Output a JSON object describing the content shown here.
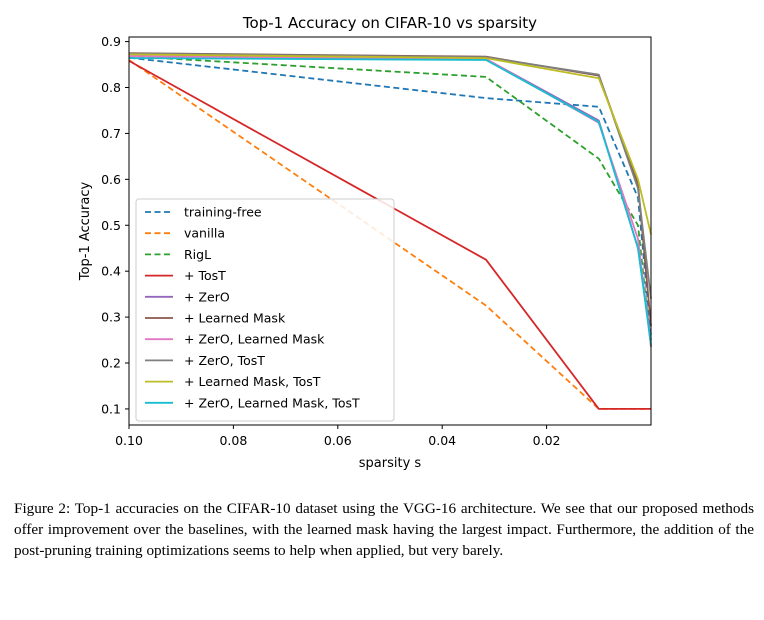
{
  "chart_data": {
    "type": "line",
    "title": "Top-1 Accuracy on CIFAR-10 vs sparsity",
    "xlabel": "sparsity s",
    "ylabel": "Top-1 Accuracy",
    "xlim": [
      0.1,
      0.0
    ],
    "ylim": [
      0.065,
      0.91
    ],
    "x_reversed": true,
    "xticks": [
      0.1,
      0.08,
      0.06,
      0.04,
      0.02
    ],
    "xtick_labels": [
      "0.10",
      "0.08",
      "0.06",
      "0.04",
      "0.02"
    ],
    "yticks": [
      0.1,
      0.2,
      0.3,
      0.4,
      0.5,
      0.6,
      0.7,
      0.8,
      0.9
    ],
    "ytick_labels": [
      "0.1",
      "0.2",
      "0.3",
      "0.4",
      "0.5",
      "0.6",
      "0.7",
      "0.8",
      "0.9"
    ],
    "grid": false,
    "legend_position": "lower-left",
    "series": [
      {
        "name": "training-free",
        "color": "#1f77b4",
        "dash": true,
        "x": [
          0.1,
          0.0316,
          0.01,
          0.0025,
          0.0
        ],
        "y": [
          0.865,
          0.777,
          0.758,
          0.56,
          0.26
        ]
      },
      {
        "name": "vanilla",
        "color": "#ff7f0e",
        "dash": true,
        "x": [
          0.1,
          0.0316,
          0.01,
          0.0025,
          0.0
        ],
        "y": [
          0.86,
          0.325,
          0.1,
          0.1,
          0.1
        ]
      },
      {
        "name": "RigL",
        "color": "#2ca02c",
        "dash": true,
        "x": [
          0.1,
          0.0316,
          0.01,
          0.0025,
          0.0
        ],
        "y": [
          0.868,
          0.823,
          0.645,
          0.5,
          0.235
        ]
      },
      {
        "name": "+ TosT",
        "color": "#d62728",
        "dash": false,
        "x": [
          0.1,
          0.0316,
          0.01,
          0.0025,
          0.0
        ],
        "y": [
          0.858,
          0.425,
          0.1,
          0.1,
          0.1
        ]
      },
      {
        "name": "+ ZerO",
        "color": "#9467bd",
        "dash": false,
        "x": [
          0.1,
          0.0316,
          0.01,
          0.0025,
          0.0
        ],
        "y": [
          0.872,
          0.862,
          0.728,
          0.45,
          0.25
        ]
      },
      {
        "name": "+ Learned Mask",
        "color": "#8c564b",
        "dash": false,
        "x": [
          0.1,
          0.0316,
          0.01,
          0.0025,
          0.0
        ],
        "y": [
          0.875,
          0.867,
          0.826,
          0.59,
          0.28
        ]
      },
      {
        "name": "+ ZerO, Learned Mask",
        "color": "#e377c2",
        "dash": false,
        "x": [
          0.1,
          0.0316,
          0.01,
          0.0025,
          0.0
        ],
        "y": [
          0.868,
          0.862,
          0.723,
          0.47,
          0.235
        ]
      },
      {
        "name": "+ ZerO, TosT",
        "color": "#7f7f7f",
        "dash": false,
        "x": [
          0.1,
          0.0316,
          0.01,
          0.0025,
          0.0
        ],
        "y": [
          0.874,
          0.866,
          0.828,
          0.58,
          0.34
        ]
      },
      {
        "name": "+ Learned Mask, TosT",
        "color": "#bcbd22",
        "dash": false,
        "x": [
          0.1,
          0.0316,
          0.01,
          0.0025,
          0.0
        ],
        "y": [
          0.872,
          0.864,
          0.82,
          0.6,
          0.48
        ]
      },
      {
        "name": "+ ZerO, Learned Mask, TosT",
        "color": "#17becf",
        "dash": false,
        "x": [
          0.1,
          0.0316,
          0.01,
          0.0025,
          0.0
        ],
        "y": [
          0.864,
          0.86,
          0.725,
          0.45,
          0.24
        ]
      }
    ]
  },
  "caption": "Figure 2: Top-1 accuracies on the CIFAR-10 dataset using the VGG-16 architecture. We see that our proposed methods offer improvement over the baselines, with the learned mask having the largest impact. Furthermore, the addition of the post-pruning training optimizations seems to help when applied, but very barely."
}
